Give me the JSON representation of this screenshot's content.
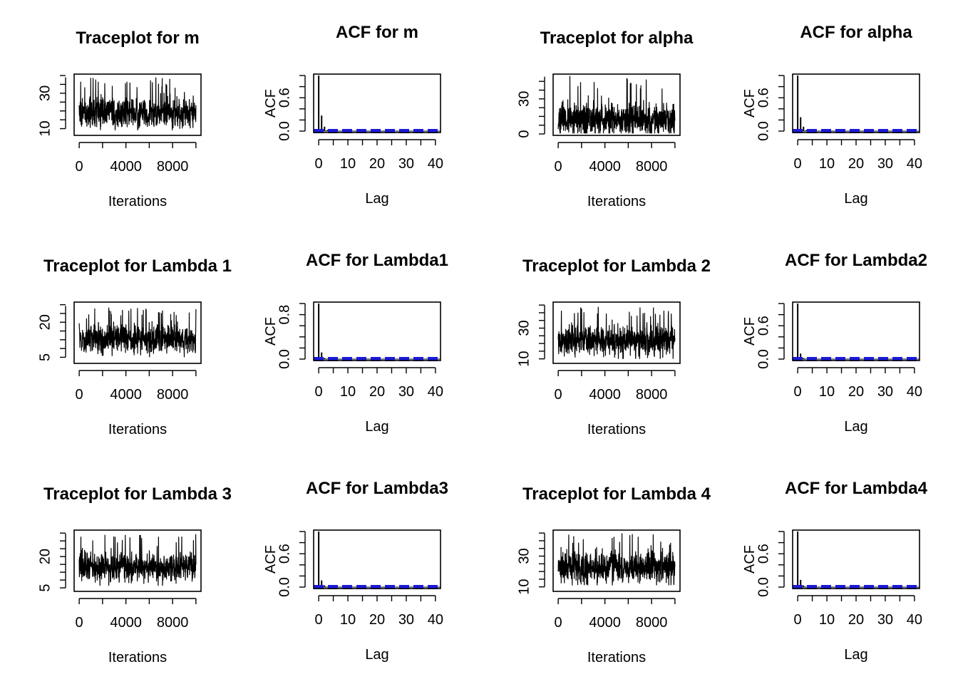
{
  "figure": {
    "background": "#ffffff",
    "series_color": "#000000",
    "ci_color": "#1a1adb"
  },
  "chart_data": [
    {
      "type": "line",
      "kind": "trace",
      "title": "Traceplot for m",
      "xlabel": "Iterations",
      "ylabel": "",
      "xlim": [
        0,
        10000
      ],
      "ylim": [
        7,
        40
      ],
      "xticks": [
        0,
        4000,
        8000
      ],
      "yticks": [
        10,
        30
      ],
      "series": [
        {
          "mean": 19,
          "sd": 4.5,
          "min": 9,
          "max": 39
        }
      ]
    },
    {
      "type": "bar",
      "kind": "acf",
      "title": "ACF for m",
      "xlabel": "Lag",
      "ylabel": "ACF",
      "xlim": [
        0,
        40
      ],
      "ylim": [
        0,
        1
      ],
      "xticks": [
        0,
        10,
        20,
        30,
        40
      ],
      "yticks": [
        "0.0",
        "0.6"
      ],
      "lags": [
        0,
        1,
        2,
        3,
        4,
        5
      ],
      "values": [
        1.0,
        0.28,
        0.08,
        0.02,
        0.01,
        0.005
      ],
      "ci_band": 0.02
    },
    {
      "type": "line",
      "kind": "trace",
      "title": "Traceplot for alpha",
      "xlabel": "Iterations",
      "ylabel": "",
      "xlim": [
        0,
        10000
      ],
      "ylim": [
        0,
        50
      ],
      "xticks": [
        0,
        4000,
        8000
      ],
      "yticks": [
        0,
        30
      ],
      "series": [
        {
          "mean": 12,
          "sd": 7,
          "min": 0.5,
          "max": 50
        }
      ]
    },
    {
      "type": "bar",
      "kind": "acf",
      "title": "ACF for alpha",
      "xlabel": "Lag",
      "ylabel": "ACF",
      "xlim": [
        0,
        40
      ],
      "ylim": [
        0,
        1
      ],
      "xticks": [
        0,
        10,
        20,
        30,
        40
      ],
      "yticks": [
        "0.0",
        "0.6"
      ],
      "lags": [
        0,
        1,
        2,
        3,
        4,
        5
      ],
      "values": [
        1.0,
        0.25,
        0.08,
        0.02,
        0.01,
        0.005
      ],
      "ci_band": 0.02
    },
    {
      "type": "line",
      "kind": "trace",
      "title": "Traceplot for Lambda 1",
      "xlabel": "Iterations",
      "ylabel": "",
      "xlim": [
        0,
        10000
      ],
      "ylim": [
        3,
        28
      ],
      "xticks": [
        0,
        4000,
        8000
      ],
      "yticks": [
        5,
        20
      ],
      "series": [
        {
          "mean": 13,
          "sd": 3,
          "min": 5,
          "max": 27
        }
      ]
    },
    {
      "type": "bar",
      "kind": "acf",
      "title": "ACF for Lambda1",
      "xlabel": "Lag",
      "ylabel": "ACF",
      "xlim": [
        0,
        40
      ],
      "ylim": [
        0,
        1
      ],
      "xticks": [
        0,
        10,
        20,
        30,
        40
      ],
      "yticks": [
        "0.0",
        "0.8"
      ],
      "lags": [
        0,
        1,
        2,
        3
      ],
      "values": [
        1.0,
        0.12,
        0.02,
        0.005
      ],
      "ci_band": 0.02
    },
    {
      "type": "line",
      "kind": "trace",
      "title": "Traceplot for Lambda 2",
      "xlabel": "Iterations",
      "ylabel": "",
      "xlim": [
        0,
        10000
      ],
      "ylim": [
        8,
        46
      ],
      "xticks": [
        0,
        4000,
        8000
      ],
      "yticks": [
        10,
        30
      ],
      "series": [
        {
          "mean": 22,
          "sd": 5,
          "min": 10,
          "max": 44
        }
      ]
    },
    {
      "type": "bar",
      "kind": "acf",
      "title": "ACF for Lambda2",
      "xlabel": "Lag",
      "ylabel": "ACF",
      "xlim": [
        0,
        40
      ],
      "ylim": [
        0,
        1
      ],
      "xticks": [
        0,
        10,
        20,
        30,
        40
      ],
      "yticks": [
        "0.0",
        "0.6"
      ],
      "lags": [
        0,
        1,
        2,
        3
      ],
      "values": [
        1.0,
        0.1,
        0.02,
        0.005
      ],
      "ci_band": 0.02
    },
    {
      "type": "line",
      "kind": "trace",
      "title": "Traceplot for Lambda 3",
      "xlabel": "Iterations",
      "ylabel": "",
      "xlim": [
        0,
        10000
      ],
      "ylim": [
        4,
        32
      ],
      "xticks": [
        0,
        4000,
        8000
      ],
      "yticks": [
        5,
        20
      ],
      "series": [
        {
          "mean": 15,
          "sd": 3.5,
          "min": 6,
          "max": 31
        }
      ]
    },
    {
      "type": "bar",
      "kind": "acf",
      "title": "ACF for Lambda3",
      "xlabel": "Lag",
      "ylabel": "ACF",
      "xlim": [
        0,
        40
      ],
      "ylim": [
        0,
        1
      ],
      "xticks": [
        0,
        10,
        20,
        30,
        40
      ],
      "yticks": [
        "0.0",
        "0.6"
      ],
      "lags": [
        0,
        1,
        2,
        3
      ],
      "values": [
        1.0,
        0.12,
        0.03,
        0.005
      ],
      "ci_band": 0.02
    },
    {
      "type": "line",
      "kind": "trace",
      "title": "Traceplot for Lambda 4",
      "xlabel": "Iterations",
      "ylabel": "",
      "xlim": [
        0,
        10000
      ],
      "ylim": [
        8,
        46
      ],
      "xticks": [
        0,
        4000,
        8000
      ],
      "yticks": [
        10,
        30
      ],
      "series": [
        {
          "mean": 23,
          "sd": 5,
          "min": 11,
          "max": 45
        }
      ]
    },
    {
      "type": "bar",
      "kind": "acf",
      "title": "ACF for Lambda4",
      "xlabel": "Lag",
      "ylabel": "ACF",
      "xlim": [
        0,
        40
      ],
      "ylim": [
        0,
        1
      ],
      "xticks": [
        0,
        10,
        20,
        30,
        40
      ],
      "yticks": [
        "0.0",
        "0.6"
      ],
      "lags": [
        0,
        1,
        2,
        3
      ],
      "values": [
        1.0,
        0.13,
        0.03,
        0.005
      ],
      "ci_band": 0.02
    }
  ]
}
